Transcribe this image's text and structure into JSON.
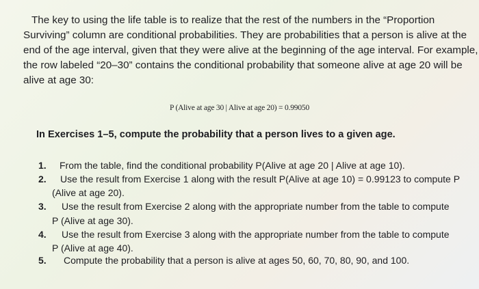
{
  "paragraph_lines": [
    "The key to using the life table is to realize that the rest of the numbers in the “Proportion",
    "Surviving” column are conditional probabilities. They are probabilities that a person is alive at the",
    "end of the age interval, given that they were alive at the beginning of the age interval. For example,",
    "the row labeled “20–30” contains the conditional probability that someone alive at age 20 will be",
    "alive at age 30:"
  ],
  "formula": "P (Alive at age 30 | Alive at age 20) = 0.99050",
  "heading": "In Exercises 1–5, compute the probability that a person lives to a given age.",
  "exercises": [
    {
      "num": "1.",
      "lines": [
        "From the table, find the conditional probability P(Alive at age 20 | Alive at age 10)."
      ]
    },
    {
      "num": "2.",
      "lines": [
        "Use the result from Exercise 1 along with the result P(Alive at age 10) = 0.99123 to compute P",
        "(Alive at age 20)."
      ]
    },
    {
      "num": "3.",
      "lines": [
        "Use the result from Exercise 2 along with the appropriate number from the table to compute",
        "P (Alive at age 30)."
      ]
    },
    {
      "num": "4.",
      "lines": [
        "Use the result from Exercise 3 along with the appropriate number from the table to compute",
        "P (Alive at age 40)."
      ]
    },
    {
      "num": "5.",
      "lines": [
        "Compute the probability that a person is alive at ages 50, 60, 70, 80, 90, and 100."
      ]
    }
  ]
}
